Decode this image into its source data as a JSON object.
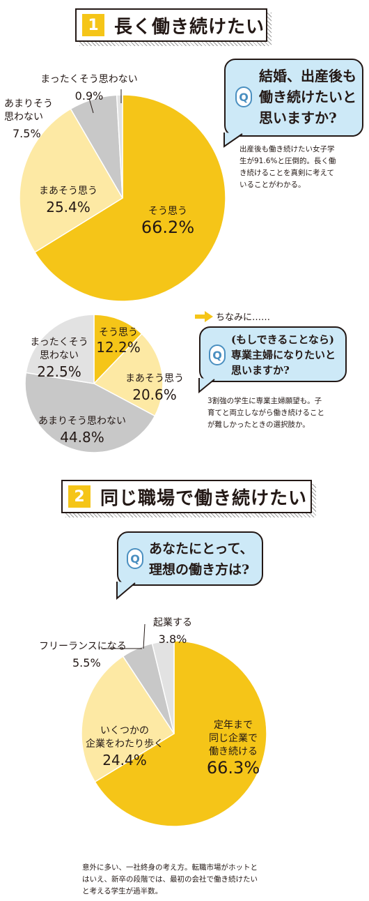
{
  "section1": {
    "num": "1",
    "title": "長く働き続けたい",
    "question": "結婚、出産後も\n働き続けたいと\n思いますか?",
    "note": "出産後も働き続けたい女子学\n生が91.6%と圧倒的。長く働\nき続けることを真剣に考えて\nいることがわかる。"
  },
  "side": {
    "aside": "ちなみに……",
    "question": "(もしできることなら)\n専業主婦になりたいと\n思いますか?",
    "note": "3割強の学生に専業主婦願望も。子\n育てと両立しながら働き続けること\nが難しかったときの選択肢か。"
  },
  "section2": {
    "num": "2",
    "title": "同じ職場で働き続けたい",
    "question": "あなたにとって、\n理想の働き方は?",
    "note": "意外に多い、一社終身の考え方。転職市場がホットと\nはいえ、新卒の段階では、最初の会社で働き続けたい\nと考える学生が過半数。"
  },
  "colors": {
    "gold": "#f5c518",
    "cream": "#fde9a4",
    "gray": "#c8c8c8",
    "light": "#e2e2e2",
    "blue": "#cde9f7"
  },
  "chart_data": [
    {
      "type": "pie",
      "slices": [
        {
          "label": "そう思う",
          "value": 66.2,
          "display": "66.2%",
          "color": "#f5c518"
        },
        {
          "label": "まあそう思う",
          "value": 25.4,
          "display": "25.4%",
          "color": "#fde9a4"
        },
        {
          "label": "あまりそう\n思わない",
          "value": 7.5,
          "display": "7.5%",
          "color": "#c8c8c8"
        },
        {
          "label": "まったくそう思わない",
          "value": 0.9,
          "display": "0.9%",
          "color": "#e2e2e2"
        }
      ]
    },
    {
      "type": "pie",
      "slices": [
        {
          "label": "そう思う",
          "value": 12.2,
          "display": "12.2%",
          "color": "#f5c518"
        },
        {
          "label": "まあそう思う",
          "value": 20.6,
          "display": "20.6%",
          "color": "#fde9a4"
        },
        {
          "label": "あまりそう思わない",
          "value": 44.8,
          "display": "44.8%",
          "color": "#c8c8c8"
        },
        {
          "label": "まったくそう\n思わない",
          "value": 22.5,
          "display": "22.5%",
          "color": "#e2e2e2"
        }
      ]
    },
    {
      "type": "pie",
      "slices": [
        {
          "label": "定年まで\n同じ企業で\n働き続ける",
          "value": 66.3,
          "display": "66.3%",
          "color": "#f5c518"
        },
        {
          "label": "いくつかの\n企業をわたり歩く",
          "value": 24.4,
          "display": "24.4%",
          "color": "#fde9a4"
        },
        {
          "label": "フリーランスになる",
          "value": 5.5,
          "display": "5.5%",
          "color": "#c8c8c8"
        },
        {
          "label": "起業する",
          "value": 3.8,
          "display": "3.8%",
          "color": "#e2e2e2"
        }
      ]
    }
  ]
}
